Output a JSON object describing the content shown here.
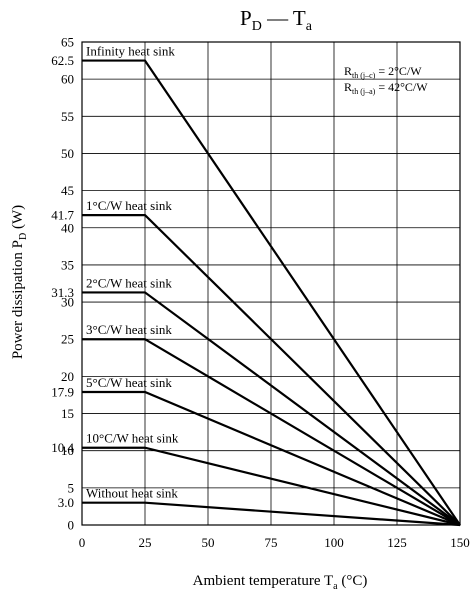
{
  "chart_data": {
    "type": "line",
    "title": {
      "main": "P",
      "main_sub": "D",
      "dash": " — T",
      "dash_sub": "a"
    },
    "xlabel": {
      "text": "Ambient temperature  T",
      "sub": "a",
      "unit": "  (°C)"
    },
    "ylabel": {
      "text": "Power dissipation  P",
      "sub": "D",
      "unit": "  (W)"
    },
    "xlim": [
      0,
      150
    ],
    "ylim": [
      0,
      65
    ],
    "grid": true,
    "x_ticks": [
      0,
      25,
      50,
      75,
      100,
      125,
      150
    ],
    "x_tick_labels": [
      "0",
      "25",
      "50",
      "75",
      "100",
      "125",
      "150"
    ],
    "y_ticks": [
      0,
      3.0,
      5,
      10,
      10.4,
      15,
      17.9,
      20,
      25,
      30,
      31.3,
      35,
      40,
      41.7,
      45,
      50,
      55,
      60,
      62.5,
      65
    ],
    "y_tick_labels": [
      "0",
      "3.0",
      "5",
      "10",
      "10.4",
      "15",
      "17.9",
      "20",
      "25",
      "30",
      "31.3",
      "35",
      "40",
      "41.7",
      "45",
      "50",
      "55",
      "60",
      "62.5",
      "65"
    ],
    "y_grid": [
      5,
      10,
      15,
      20,
      25,
      30,
      35,
      40,
      45,
      50,
      55,
      60
    ],
    "series": [
      {
        "name": "Infinity heat sink",
        "x": [
          0,
          25,
          150
        ],
        "y": [
          62.5,
          62.5,
          0
        ]
      },
      {
        "name": "1°C/W heat sink",
        "x": [
          0,
          25,
          150
        ],
        "y": [
          41.7,
          41.7,
          0
        ]
      },
      {
        "name": "2°C/W heat sink",
        "x": [
          0,
          25,
          150
        ],
        "y": [
          31.3,
          31.3,
          0
        ]
      },
      {
        "name": "3°C/W heat sink",
        "x": [
          0,
          25,
          150
        ],
        "y": [
          25,
          25,
          0
        ]
      },
      {
        "name": "5°C/W heat sink",
        "x": [
          0,
          25,
          150
        ],
        "y": [
          17.9,
          17.9,
          0
        ]
      },
      {
        "name": "10°C/W heat sink",
        "x": [
          0,
          25,
          150
        ],
        "y": [
          10.4,
          10.4,
          0
        ]
      },
      {
        "name": "Without heat sink",
        "x": [
          0,
          25,
          150
        ],
        "y": [
          3.0,
          3.0,
          0
        ]
      }
    ],
    "annotations": [
      {
        "pre": "R",
        "sub": "th (j–c)",
        "post": " = 2°C/W"
      },
      {
        "pre": "R",
        "sub": "th (j–a)",
        "post": " = 42°C/W"
      }
    ],
    "colors": {
      "line": "#000000",
      "grid": "#000000",
      "background": "#ffffff"
    }
  }
}
